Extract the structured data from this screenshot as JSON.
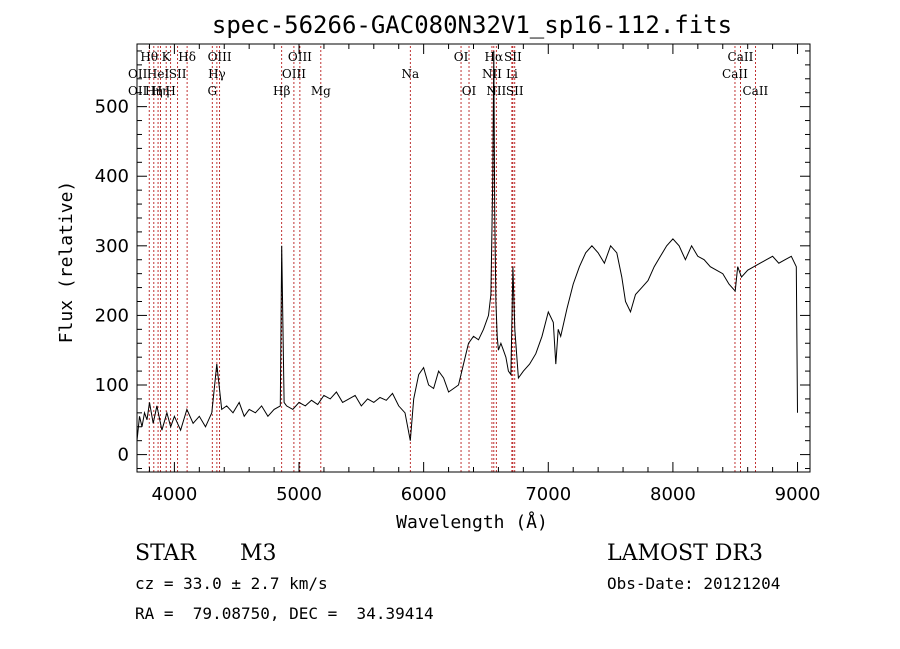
{
  "chart_data": {
    "type": "line",
    "title": "spec-56266-GAC080N32V1_sp16-112.fits",
    "xlabel": "Wavelength (Å)",
    "ylabel": "Flux (relative)",
    "xlim": [
      3700,
      9100
    ],
    "ylim": [
      -25,
      590
    ],
    "x_ticks": [
      4000,
      5000,
      6000,
      7000,
      8000,
      9000
    ],
    "y_ticks": [
      0,
      100,
      200,
      300,
      400,
      500
    ],
    "grid": false,
    "series": [
      {
        "x": [
          3700,
          3720,
          3740,
          3760,
          3780,
          3800,
          3830,
          3860,
          3900,
          3940,
          3970,
          4000,
          4050,
          4100,
          4150,
          4200,
          4250,
          4300,
          4340,
          4380,
          4420,
          4470,
          4520,
          4560,
          4600,
          4650,
          4700,
          4750,
          4800,
          4850,
          4861,
          4880,
          4900,
          4950,
          5000,
          5050,
          5100,
          5150,
          5200,
          5250,
          5300,
          5350,
          5400,
          5450,
          5500,
          5550,
          5600,
          5650,
          5700,
          5750,
          5800,
          5850,
          5893,
          5920,
          5960,
          6000,
          6040,
          6080,
          6120,
          6160,
          6200,
          6240,
          6280,
          6320,
          6360,
          6400,
          6440,
          6480,
          6520,
          6540,
          6555,
          6563,
          6570,
          6580,
          6590,
          6600,
          6620,
          6640,
          6660,
          6680,
          6700,
          6716,
          6731,
          6760,
          6800,
          6850,
          6900,
          6950,
          7000,
          7040,
          7060,
          7080,
          7100,
          7150,
          7200,
          7250,
          7300,
          7350,
          7400,
          7450,
          7500,
          7550,
          7590,
          7620,
          7660,
          7700,
          7750,
          7800,
          7850,
          7900,
          7950,
          8000,
          8050,
          8100,
          8150,
          8200,
          8250,
          8300,
          8350,
          8400,
          8450,
          8500,
          8520,
          8550,
          8600,
          8650,
          8700,
          8750,
          8800,
          8850,
          8900,
          8950,
          8990,
          9000
        ],
        "y": [
          20,
          55,
          40,
          60,
          50,
          75,
          45,
          70,
          35,
          60,
          40,
          55,
          35,
          65,
          45,
          55,
          40,
          60,
          130,
          65,
          70,
          60,
          75,
          55,
          65,
          60,
          70,
          55,
          65,
          70,
          300,
          75,
          70,
          65,
          75,
          70,
          78,
          72,
          85,
          80,
          90,
          75,
          80,
          85,
          70,
          80,
          75,
          82,
          78,
          88,
          70,
          60,
          20,
          80,
          115,
          125,
          100,
          95,
          120,
          110,
          90,
          95,
          100,
          130,
          160,
          170,
          165,
          180,
          200,
          230,
          400,
          580,
          350,
          220,
          170,
          150,
          160,
          150,
          140,
          120,
          115,
          270,
          180,
          110,
          120,
          130,
          145,
          170,
          205,
          190,
          130,
          180,
          170,
          210,
          245,
          270,
          290,
          300,
          290,
          275,
          300,
          290,
          255,
          220,
          205,
          230,
          240,
          250,
          270,
          285,
          300,
          310,
          300,
          280,
          300,
          285,
          280,
          270,
          265,
          260,
          245,
          235,
          270,
          255,
          265,
          270,
          275,
          280,
          285,
          275,
          280,
          285,
          270,
          60
        ]
      }
    ],
    "line_markers": [
      {
        "x": 3798,
        "label": "Hθ",
        "row": 0
      },
      {
        "x": 3835,
        "label": "Hη",
        "row": 2
      },
      {
        "x": 3869,
        "label": "HeI",
        "row": 1
      },
      {
        "x": 3889,
        "label": "Hη",
        "row": 2
      },
      {
        "x": 3934,
        "label": "K",
        "row": 0
      },
      {
        "x": 3970,
        "label": "H",
        "row": 2
      },
      {
        "x": 4026,
        "label": "SII",
        "row": 1
      },
      {
        "x": 4102,
        "label": "Hδ",
        "row": 0
      },
      {
        "x": 4304,
        "label": "G",
        "row": 2
      },
      {
        "x": 4341,
        "label": "Hγ",
        "row": 1
      },
      {
        "x": 4363,
        "label": "OIII",
        "row": 0
      },
      {
        "x": 4861,
        "label": "Hβ",
        "row": 2
      },
      {
        "x": 4959,
        "label": "OIII",
        "row": 1
      },
      {
        "x": 5007,
        "label": "OIII",
        "row": 0
      },
      {
        "x": 5175,
        "label": "Mg",
        "row": 2
      },
      {
        "x": 5893,
        "label": "Na",
        "row": 1
      },
      {
        "x": 6300,
        "label": "OI",
        "row": 0
      },
      {
        "x": 6364,
        "label": "OI",
        "row": 2
      },
      {
        "x": 6548,
        "label": "NII",
        "row": 1
      },
      {
        "x": 6563,
        "label": "Hα",
        "row": 0
      },
      {
        "x": 6583,
        "label": "NII",
        "row": 2
      },
      {
        "x": 6708,
        "label": "Li",
        "row": 1
      },
      {
        "x": 6716,
        "label": "SII",
        "row": 0
      },
      {
        "x": 6731,
        "label": "SII",
        "row": 2
      },
      {
        "x": 8498,
        "label": "CaII",
        "row": 1
      },
      {
        "x": 8542,
        "label": "CaII",
        "row": 0
      },
      {
        "x": 8662,
        "label": "CaII",
        "row": 2
      }
    ],
    "left_edge_labels": [
      {
        "label": "OII",
        "row": 1
      },
      {
        "label": "OII",
        "row": 2
      }
    ]
  },
  "info": {
    "object_class": "STAR",
    "subclass": "M3",
    "survey": "LAMOST DR3",
    "redshift": "cz =  33.0 ± 2.7 km/s",
    "obs_date": "Obs-Date: 20121204",
    "coords": "RA =  79.08750, DEC =  34.39414"
  },
  "colors": {
    "axes": "#000000",
    "spectrum": "#000000",
    "marker_line": "#b00000",
    "background": "#ffffff"
  }
}
